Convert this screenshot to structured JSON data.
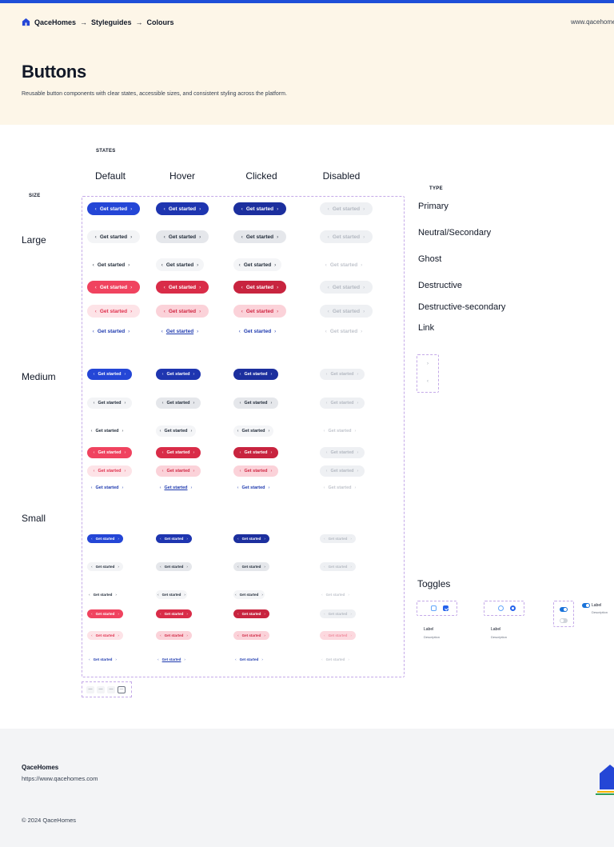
{
  "header": {
    "breadcrumb": [
      "QaceHomes",
      "Styleguides",
      "Colours"
    ],
    "separator": "→",
    "site_url": "www.qacehomes"
  },
  "page": {
    "title": "Buttons",
    "subtitle": "Reusable button components with clear states, accessible sizes, and consistent styling across the platform."
  },
  "labels": {
    "states": "STATES",
    "size": "SIZE",
    "type": "TYPE"
  },
  "states": [
    "Default",
    "Hover",
    "Clicked",
    "Disabled"
  ],
  "sizes": [
    "Large",
    "Medium",
    "Small"
  ],
  "types": [
    "Primary",
    "Neutral/Secondary",
    "Ghost",
    "Destructive",
    "Destructive-secondary",
    "Link"
  ],
  "button_text": "Get started",
  "icons": {
    "chevron_left": "‹",
    "chevron_right": "›"
  },
  "mini_buttons": [
    "—",
    "—",
    "—",
    "—"
  ],
  "toggles": {
    "title": "Toggles",
    "checkbox": {
      "label": "Label",
      "description": "Description"
    },
    "radio": {
      "label": "Label",
      "description": "Description"
    },
    "switch": {
      "label": "Label",
      "description": "Description"
    }
  },
  "footer": {
    "brand": "QaceHomes",
    "url": "https://www.qacehomes.com",
    "copyright": "© 2024 QaceHomes"
  },
  "colors": {
    "accent": "#1f4fd8",
    "primary": "#2446d6",
    "destructive": "#f0435f",
    "hero_bg": "#fdf6e8",
    "dashed_border": "#c4a9e8"
  }
}
